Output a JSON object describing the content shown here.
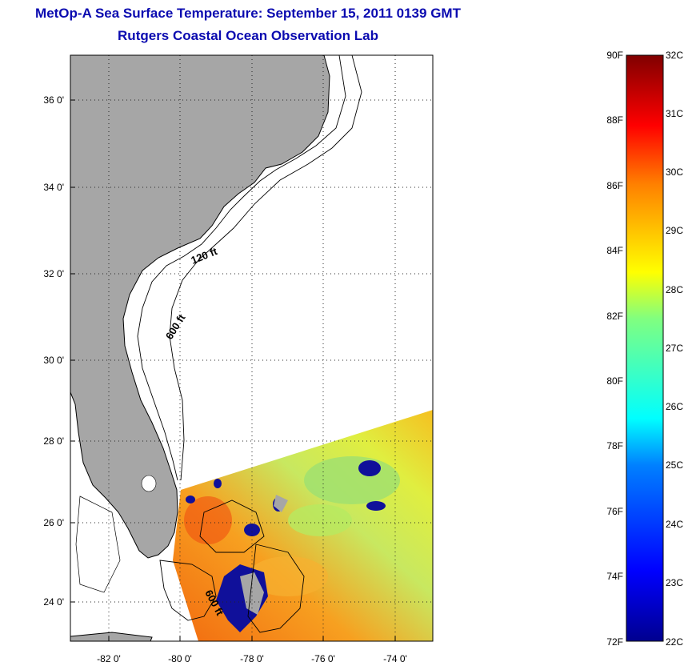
{
  "title": "MetOp-A Sea Surface Temperature:  September 15, 2011 0139 GMT",
  "subtitle": "Rutgers Coastal Ocean Observation Lab",
  "map": {
    "lon_ticks": [
      "-82 0'",
      "-80 0'",
      "-78 0'",
      "-76 0'",
      "-74 0'"
    ],
    "lat_ticks": [
      "36 0'",
      "34 0'",
      "32 0'",
      "30 0'",
      "28 0'",
      "26 0'",
      "24 0'"
    ],
    "contour_labels": [
      "120 ft",
      "600 ft",
      "600 ft"
    ],
    "colors": {
      "land": "#a6a6a6",
      "ocean": "#ffffff",
      "contour": "#000000",
      "cloud_mask": "#10109a"
    }
  },
  "colorbar": {
    "fahrenheit_labels": [
      "90F",
      "88F",
      "86F",
      "84F",
      "82F",
      "80F",
      "78F",
      "76F",
      "74F",
      "72F"
    ],
    "celsius_labels": [
      "32C",
      "31C",
      "30C",
      "29C",
      "28C",
      "27C",
      "26C",
      "25C",
      "24C",
      "23C",
      "22C"
    ],
    "range_c": [
      22,
      32
    ],
    "range_f": [
      72,
      90
    ],
    "colormap": [
      "#00008f",
      "#0000ff",
      "#0080ff",
      "#00ffff",
      "#80ff80",
      "#ffff00",
      "#ff8000",
      "#ff0000",
      "#800000"
    ]
  }
}
